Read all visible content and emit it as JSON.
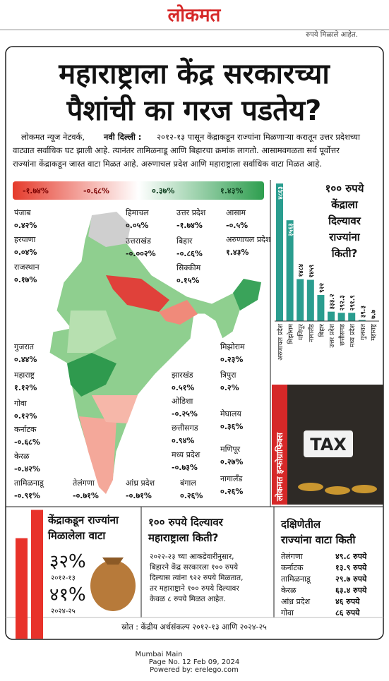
{
  "header": {
    "logo": "लोकमत",
    "snippet": "रुपये मिळाले आहेत."
  },
  "headline": [
    "महाराष्ट्राला केंद्र सरकारच्या",
    "पैशांची का गरज पडतेय?"
  ],
  "intro": {
    "byline": "लोकमत न्यूज नेटवर्क,",
    "dateline": "नवी दिल्ली :",
    "lines": [
      "२०१२-१३ पासून केंद्राकडून राज्यांना मिळणाऱ्या करातून उत्तर प्रदेशच्या",
      "वाट्यात सर्वाधिक घट झाली आहे. त्यानंतर तामिळनाडू आणि बिहारचा क्रमांक लागतो. आसामवगळता सर्व पूर्वोत्तर",
      "राज्यांना केंद्राकडून जास्त वाटा मिळत आहे. अरुणाचल प्रदेश आणि महाराष्ट्राला सर्वाधिक वाटा मिळत आहे."
    ]
  },
  "map": {
    "legend": [
      "-१.७४%",
      "-०.६८%",
      "०.३७%",
      "१.४३%"
    ],
    "states": [
      {
        "name": "पंजाब",
        "value": "०.४२%"
      },
      {
        "name": "हरयाणा",
        "value": "०.०४%"
      },
      {
        "name": "राजस्थान",
        "value": "०.१७%"
      },
      {
        "name": "गुजरात",
        "value": "०.४४%"
      },
      {
        "name": "महाराष्ट्र",
        "value": "१.१२%"
      },
      {
        "name": "गोवा",
        "value": "०.१२%"
      },
      {
        "name": "कर्नाटक",
        "value": "-०.६८%"
      },
      {
        "name": "केरळ",
        "value": "-०.४२%"
      },
      {
        "name": "तामिळनाडू",
        "value": "-०.९१%"
      },
      {
        "name": "तेलंगणा",
        "value": "-०.७१%"
      },
      {
        "name": "आंध्र प्रदेश",
        "value": "-०.७१%"
      },
      {
        "name": "बंगाल",
        "value": "०.२६%"
      },
      {
        "name": "नागालँड",
        "value": "०.२६%"
      },
      {
        "name": "हिमाचल",
        "value": "०.०५%"
      },
      {
        "name": "उत्तराखंड",
        "value": "-०.००२%"
      },
      {
        "name": "उत्तर प्रदेश",
        "value": "-१.७४%"
      },
      {
        "name": "बिहार",
        "value": "-०.८६%"
      },
      {
        "name": "सिक्कीम",
        "value": "०.१५%"
      },
      {
        "name": "आसाम",
        "value": "-०.५%"
      },
      {
        "name": "अरुणाचल प्रदेश",
        "value": "१.४३%"
      },
      {
        "name": "मिझोराम",
        "value": "०.२३%"
      },
      {
        "name": "त्रिपुरा",
        "value": "०.२%"
      },
      {
        "name": "मेघालय",
        "value": "०.३६%"
      },
      {
        "name": "मणिपूर",
        "value": "०.२७%"
      },
      {
        "name": "झारखंड",
        "value": "०.५१%"
      },
      {
        "name": "ओडिशा",
        "value": "-०.२५%"
      },
      {
        "name": "छत्तीसगड",
        "value": "०.९४%"
      },
      {
        "name": "मध्य प्रदेश",
        "value": "-०.७३%"
      }
    ]
  },
  "bar_chart": {
    "title": [
      "१०० रुपये",
      "केंद्राला",
      "दिल्यावर",
      "राज्यांना",
      "किती?"
    ],
    "categories": [
      "अरुणाचल प्रदेश",
      "मिझोराम",
      "मणिपूर",
      "नागालँड",
      "बिहार",
      "उत्तर प्रदेश",
      "छत्तीसगड",
      "मध्य प्रदेश",
      "गुजरात",
      "महाराष्ट्र"
    ],
    "values": [
      4863,
      3563,
      1484,
      1459,
      922,
      333.2,
      292.3,
      291.9,
      39.3,
      7.7
    ],
    "value_labels": [
      "४८६३",
      "३५६३",
      "१४८४",
      "१४५९",
      "९२२",
      "३३३.२",
      "२९२.३",
      "२९१.९",
      "३९.३",
      "७.७"
    ],
    "color": "#2a9d8f"
  },
  "infographic_tag": "लोकमत इन्फोग्राफिक्स",
  "tax_label": "TAX",
  "share": {
    "title": [
      "केंद्राकडून राज्यांना",
      "मिळालेला वाटा"
    ],
    "items": [
      {
        "value": 32,
        "label": "३२%",
        "year": "२०१२-१३"
      },
      {
        "value": 41,
        "label": "४१%",
        "year": "२०२४-२५"
      }
    ]
  },
  "maharashtra": {
    "title": [
      "१०० रुपये दिल्यावर",
      "महाराष्ट्राला किती?"
    ],
    "lines": [
      "२०२२-२३ च्या आकडेवारीनुसार,",
      "बिहारने केंद्र सरकारला १०० रुपये",
      "दिल्यास त्यांना ९२२ रुपये मिळतात,",
      "तर महाराष्ट्राने १०० रुपये दिल्यावर",
      "केवळ ८ रुपये मिळत आहेत."
    ]
  },
  "south": {
    "title": [
      "दक्षिणेतील",
      "राज्यांना वाटा किती"
    ],
    "rows": [
      [
        "तेलंगणा",
        "४९.८ रुपये"
      ],
      [
        "कर्नाटक",
        "१३.९ रुपये"
      ],
      [
        "तामिळनाडू",
        "२९.७ रुपये"
      ],
      [
        "केरळ",
        "६३.४ रुपये"
      ],
      [
        "आंध्र प्रदेश",
        "४६ रुपये"
      ],
      [
        "गोवा",
        "८६ रुपये"
      ]
    ]
  },
  "source": "स्रोत : केंद्रीय अर्थसंकल्प २०१२-१३ आणि २०२४-२५",
  "footer": [
    "Mumbai Main",
    "Page No. 12  Feb 09, 2024",
    "Powered by: erelego.com"
  ]
}
